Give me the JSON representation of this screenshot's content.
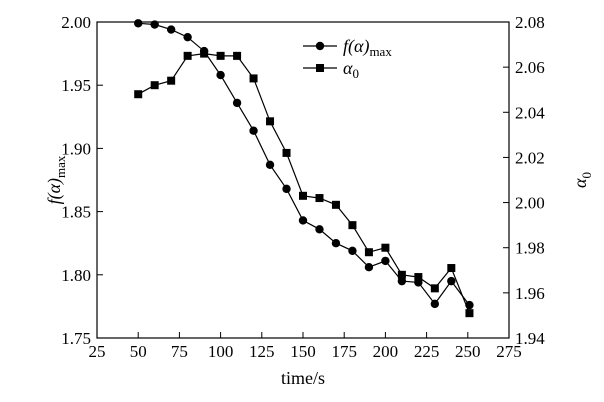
{
  "chart_data": {
    "type": "line",
    "title": "",
    "xlabel": "time/s",
    "ylabel_left": {
      "base": "f(α)",
      "sub": "max"
    },
    "ylabel_right": {
      "base": "α",
      "sub": "0"
    },
    "xlim": [
      25,
      275
    ],
    "ylim_left": [
      1.75,
      2.0
    ],
    "ylim_right": [
      1.94,
      2.08
    ],
    "grid": false,
    "legend_position": "top-right",
    "x_ticks": [
      "25",
      "50",
      "75",
      "100",
      "125",
      "150",
      "175",
      "200",
      "225",
      "250",
      "275"
    ],
    "y_left_ticks": [
      "1.75",
      "1.80",
      "1.85",
      "1.90",
      "1.95",
      "2.00"
    ],
    "y_right_ticks": [
      "1.94",
      "1.96",
      "1.98",
      "2.00",
      "2.02",
      "2.04",
      "2.06",
      "2.08"
    ],
    "series": [
      {
        "name": "f(α)max",
        "legend": {
          "base": "f(α)",
          "sub": "max"
        },
        "axis": "left",
        "marker": "circle",
        "x": [
          50,
          60,
          70,
          80,
          90,
          100,
          110,
          120,
          130,
          140,
          150,
          160,
          170,
          180,
          190,
          200,
          210,
          220,
          230,
          240,
          251
        ],
        "values": [
          1.999,
          1.998,
          1.994,
          1.988,
          1.977,
          1.958,
          1.936,
          1.914,
          1.887,
          1.868,
          1.843,
          1.836,
          1.825,
          1.819,
          1.806,
          1.811,
          1.795,
          1.794,
          1.777,
          1.795,
          1.776
        ]
      },
      {
        "name": "α0",
        "legend": {
          "base": "α",
          "sub": "0"
        },
        "axis": "right",
        "marker": "square",
        "x": [
          50,
          60,
          70,
          80,
          90,
          100,
          110,
          120,
          130,
          140,
          150,
          160,
          170,
          180,
          190,
          200,
          210,
          220,
          230,
          240,
          251
        ],
        "values": [
          2.048,
          2.052,
          2.054,
          2.065,
          2.066,
          2.065,
          2.065,
          2.055,
          2.036,
          2.022,
          2.003,
          2.002,
          1.999,
          1.99,
          1.978,
          1.98,
          1.968,
          1.967,
          1.962,
          1.971,
          1.951
        ]
      }
    ]
  }
}
